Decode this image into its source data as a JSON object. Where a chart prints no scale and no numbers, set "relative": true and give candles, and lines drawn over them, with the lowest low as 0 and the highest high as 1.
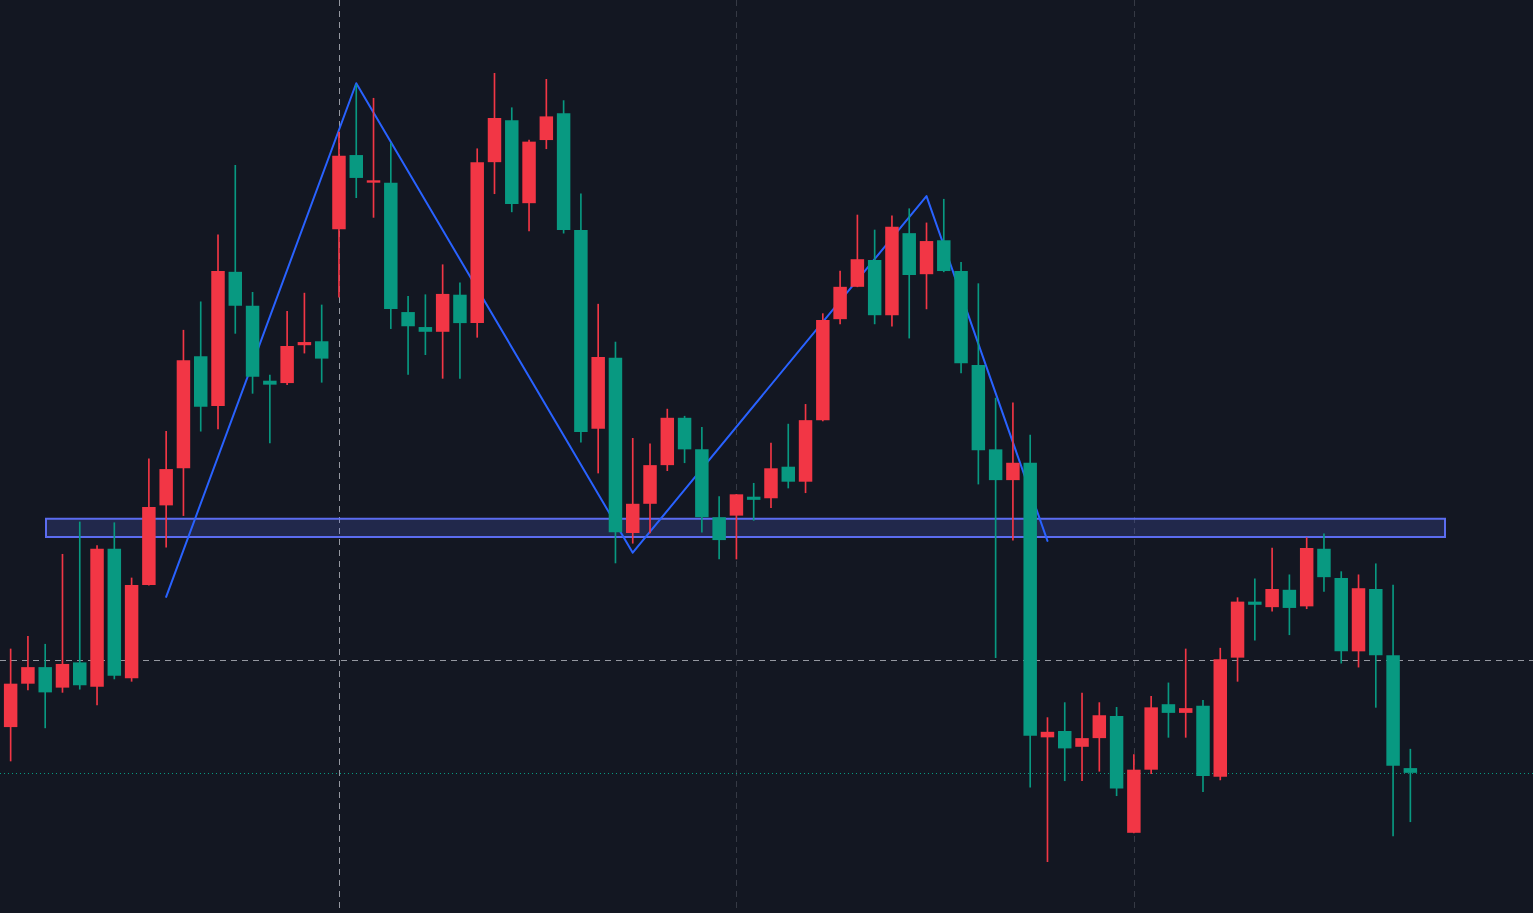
{
  "chart_data": {
    "type": "candlestick",
    "relative": true,
    "tick_labels": false,
    "categories": [
      null,
      null,
      null,
      null,
      null,
      null,
      null,
      null,
      null,
      null,
      null,
      null,
      null,
      null,
      null,
      null,
      null,
      null,
      null,
      null,
      null,
      null,
      null,
      null,
      null,
      null,
      null,
      null,
      null,
      null,
      null,
      null,
      null,
      null,
      null,
      null,
      null,
      null,
      null,
      null,
      null,
      null,
      null,
      null,
      null,
      null,
      null,
      null,
      null,
      null,
      null,
      null,
      null,
      null,
      null,
      null,
      null,
      null,
      null,
      null,
      null,
      null,
      null,
      null,
      null,
      null,
      null,
      null,
      null,
      null,
      null,
      null,
      null,
      null,
      null,
      null,
      null,
      null,
      null,
      null,
      null,
      null
    ],
    "ohlc": [
      [
        0.171,
        0.27,
        0.128,
        0.226
      ],
      [
        0.226,
        0.286,
        0.218,
        0.247
      ],
      [
        0.247,
        0.276,
        0.17,
        0.215
      ],
      [
        0.221,
        0.39,
        0.215,
        0.251
      ],
      [
        0.253,
        0.431,
        0.219,
        0.224
      ],
      [
        0.222,
        0.401,
        0.199,
        0.397
      ],
      [
        0.397,
        0.43,
        0.232,
        0.236
      ],
      [
        0.233,
        0.36,
        0.229,
        0.351
      ],
      [
        0.351,
        0.511,
        0.351,
        0.45
      ],
      [
        0.452,
        0.546,
        0.399,
        0.498
      ],
      [
        0.499,
        0.674,
        0.439,
        0.636
      ],
      [
        0.641,
        0.71,
        0.546,
        0.577
      ],
      [
        0.578,
        0.795,
        0.549,
        0.749
      ],
      [
        0.748,
        0.883,
        0.67,
        0.705
      ],
      [
        0.705,
        0.722,
        0.594,
        0.615
      ],
      [
        0.61,
        0.617,
        0.531,
        0.605
      ],
      [
        0.607,
        0.698,
        0.605,
        0.654
      ],
      [
        0.655,
        0.721,
        0.645,
        0.659
      ],
      [
        0.66,
        0.706,
        0.608,
        0.638
      ],
      [
        0.802,
        0.925,
        0.716,
        0.895
      ],
      [
        0.896,
        0.985,
        0.842,
        0.867
      ],
      [
        0.861,
        0.968,
        0.817,
        0.864
      ],
      [
        0.861,
        0.911,
        0.676,
        0.701
      ],
      [
        0.697,
        0.717,
        0.618,
        0.679
      ],
      [
        0.678,
        0.719,
        0.643,
        0.672
      ],
      [
        0.672,
        0.757,
        0.613,
        0.72
      ],
      [
        0.719,
        0.734,
        0.613,
        0.683
      ],
      [
        0.683,
        0.904,
        0.665,
        0.887
      ],
      [
        0.887,
        1.0,
        0.847,
        0.943
      ],
      [
        0.94,
        0.956,
        0.824,
        0.834
      ],
      [
        0.835,
        0.915,
        0.8,
        0.913
      ],
      [
        0.915,
        0.992,
        0.904,
        0.945
      ],
      [
        0.949,
        0.965,
        0.797,
        0.801
      ],
      [
        0.801,
        0.847,
        0.532,
        0.545
      ],
      [
        0.549,
        0.707,
        0.493,
        0.64
      ],
      [
        0.639,
        0.659,
        0.379,
        0.418
      ],
      [
        0.417,
        0.537,
        0.404,
        0.454
      ],
      [
        0.454,
        0.53,
        0.417,
        0.503
      ],
      [
        0.503,
        0.574,
        0.496,
        0.563
      ],
      [
        0.563,
        0.565,
        0.506,
        0.523
      ],
      [
        0.523,
        0.551,
        0.418,
        0.437
      ],
      [
        0.437,
        0.463,
        0.384,
        0.408
      ],
      [
        0.439,
        0.466,
        0.384,
        0.466
      ],
      [
        0.463,
        0.48,
        0.433,
        0.459
      ],
      [
        0.461,
        0.531,
        0.449,
        0.499
      ],
      [
        0.501,
        0.555,
        0.474,
        0.482
      ],
      [
        0.482,
        0.58,
        0.468,
        0.56
      ],
      [
        0.56,
        0.695,
        0.559,
        0.687
      ],
      [
        0.688,
        0.749,
        0.682,
        0.729
      ],
      [
        0.729,
        0.82,
        0.729,
        0.764
      ],
      [
        0.763,
        0.801,
        0.682,
        0.693
      ],
      [
        0.693,
        0.819,
        0.679,
        0.805
      ],
      [
        0.797,
        0.828,
        0.664,
        0.744
      ],
      [
        0.745,
        0.81,
        0.701,
        0.787
      ],
      [
        0.788,
        0.84,
        0.748,
        0.749
      ],
      [
        0.749,
        0.76,
        0.62,
        0.632
      ],
      [
        0.63,
        0.733,
        0.479,
        0.522
      ],
      [
        0.523,
        0.588,
        0.259,
        0.484
      ],
      [
        0.484,
        0.582,
        0.408,
        0.506
      ],
      [
        0.506,
        0.541,
        0.095,
        0.16
      ],
      [
        0.158,
        0.183,
        0,
        0.165
      ],
      [
        0.166,
        0.202,
        0.103,
        0.144
      ],
      [
        0.146,
        0.214,
        0.103,
        0.157
      ],
      [
        0.157,
        0.202,
        0.115,
        0.186
      ],
      [
        0.185,
        0.196,
        0.084,
        0.093
      ],
      [
        0.037,
        0.136,
        0.037,
        0.117
      ],
      [
        0.117,
        0.21,
        0.112,
        0.196
      ],
      [
        0.2,
        0.227,
        0.158,
        0.189
      ],
      [
        0.189,
        0.27,
        0.158,
        0.195
      ],
      [
        0.198,
        0.205,
        0.089,
        0.109
      ],
      [
        0.108,
        0.271,
        0.104,
        0.257
      ],
      [
        0.259,
        0.335,
        0.229,
        0.33
      ],
      [
        0.33,
        0.359,
        0.281,
        0.326
      ],
      [
        0.323,
        0.398,
        0.318,
        0.346
      ],
      [
        0.345,
        0.364,
        0.288,
        0.322
      ],
      [
        0.324,
        0.411,
        0.321,
        0.398
      ],
      [
        0.397,
        0.416,
        0.343,
        0.361
      ],
      [
        0.36,
        0.368,
        0.252,
        0.267
      ],
      [
        0.267,
        0.364,
        0.247,
        0.347
      ],
      [
        0.346,
        0.378,
        0.196,
        0.262
      ],
      [
        0.262,
        0.351,
        0.033,
        0.122
      ],
      [
        0.119,
        0.143,
        0.051,
        0.113
      ]
    ],
    "colors": [
      "#f23645",
      "#f23645",
      "#089981",
      "#f23645",
      "#089981",
      "#f23645",
      "#089981",
      "#f23645",
      "#f23645",
      "#f23645",
      "#f23645",
      "#089981",
      "#f23645",
      "#089981",
      "#089981",
      "#089981",
      "#f23645",
      "#f23645",
      "#089981",
      "#f23645",
      "#089981",
      "#f23645",
      "#089981",
      "#089981",
      "#089981",
      "#f23645",
      "#089981",
      "#f23645",
      "#f23645",
      "#089981",
      "#f23645",
      "#f23645",
      "#089981",
      "#089981",
      "#f23645",
      "#089981",
      "#f23645",
      "#f23645",
      "#f23645",
      "#089981",
      "#089981",
      "#089981",
      "#f23645",
      "#089981",
      "#f23645",
      "#089981",
      "#f23645",
      "#f23645",
      "#f23645",
      "#f23645",
      "#089981",
      "#f23645",
      "#089981",
      "#f23645",
      "#089981",
      "#089981",
      "#089981",
      "#089981",
      "#f23645",
      "#089981",
      "#f23645",
      "#089981",
      "#f23645",
      "#f23645",
      "#089981",
      "#f23645",
      "#f23645",
      "#089981",
      "#f23645",
      "#089981",
      "#f23645",
      "#f23645",
      "#089981",
      "#f23645",
      "#089981",
      "#f23645",
      "#089981",
      "#089981",
      "#f23645",
      "#089981",
      "#089981",
      "#089981"
    ],
    "series": [
      {
        "type": "line",
        "color": "#2962ff",
        "values": [
          null,
          null,
          null,
          null,
          null,
          null,
          null,
          null,
          null,
          0.336,
          null,
          null,
          null,
          null,
          null,
          null,
          null,
          null,
          null,
          null,
          0.987,
          null,
          null,
          null,
          null,
          null,
          null,
          null,
          null,
          null,
          null,
          null,
          null,
          null,
          null,
          null,
          0.392,
          null,
          null,
          null,
          null,
          null,
          null,
          null,
          null,
          null,
          null,
          null,
          null,
          null,
          null,
          null,
          null,
          0.844,
          null,
          null,
          null,
          null,
          null,
          null,
          0.407,
          null,
          null,
          null,
          null,
          null,
          null,
          null,
          null,
          null,
          null,
          null,
          null,
          null,
          null,
          null,
          null,
          null,
          null,
          null,
          null,
          null
        ]
      }
    ],
    "bands": [
      {
        "axis": "y",
        "from": 0.412,
        "to": 0.435,
        "color": "#5b6cf0"
      }
    ],
    "ref_lines": [
      {
        "axis": "y",
        "value": 0.256,
        "color": "#9598a1",
        "line_style": "dashed"
      },
      {
        "axis": "y",
        "value": 0.113,
        "color": "#089981",
        "line_style": "dotted"
      }
    ]
  }
}
